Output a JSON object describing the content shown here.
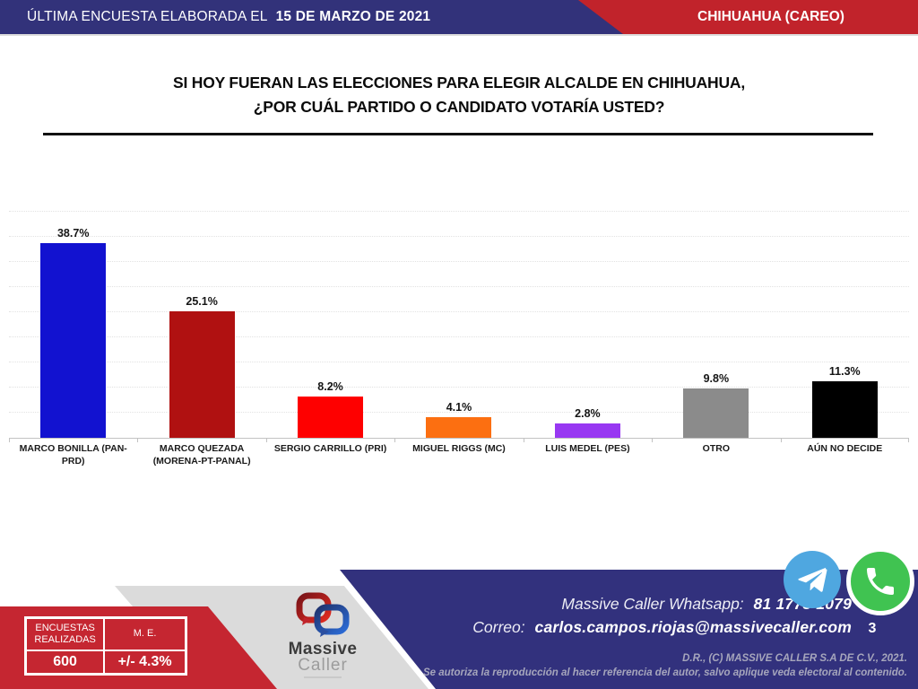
{
  "header": {
    "left_label": "ÚLTIMA ENCUESTA ELABORADA EL",
    "date": "15 DE MARZO DE 2021",
    "region_label": "CHIHUAHUA (CAREO)"
  },
  "question": {
    "line1": "SI HOY FUERAN LAS ELECCIONES PARA ELEGIR ALCALDE EN CHIHUAHUA,",
    "line2": "¿POR CUÁL PARTIDO O CANDIDATO VOTARÍA USTED?"
  },
  "chart_data": {
    "type": "bar",
    "title": "SI HOY FUERAN LAS ELECCIONES PARA ELEGIR ALCALDE EN CHIHUAHUA, ¿POR CUÁL PARTIDO O CANDIDATO VOTARÍA USTED?",
    "categories": [
      "MARCO BONILLA (PAN-PRD)",
      "MARCO QUEZADA (MORENA-PT-PANAL)",
      "SERGIO CARRILLO (PRI)",
      "MIGUEL RIGGS (MC)",
      "LUIS MEDEL (PES)",
      "OTRO",
      "AÚN NO DECIDE"
    ],
    "values": [
      38.7,
      25.1,
      8.2,
      4.1,
      2.8,
      9.8,
      11.3
    ],
    "value_labels": [
      "38.7%",
      "25.1%",
      "8.2%",
      "4.1%",
      "2.8%",
      "9.8%",
      "11.3%"
    ],
    "bar_colors": [
      "#1212D0",
      "#B01111",
      "#FE0000",
      "#FC6F11",
      "#9838F2",
      "#8B8B8B",
      "#000000"
    ],
    "xlabel": "",
    "ylabel": "",
    "ylim": [
      0,
      45
    ],
    "gridline_step": 5,
    "grid": true,
    "legend": false
  },
  "footer": {
    "table": {
      "col1_header": "ENCUESTAS REALIZADAS",
      "col2_header": "M. E.",
      "col1_value": "600",
      "col2_value": "+/- 4.3%"
    },
    "logo": {
      "word1": "Massive",
      "word2": "Caller"
    },
    "contact": {
      "whatsapp_label": "Massive Caller Whatsapp:",
      "whatsapp_number": "81 1778 1079",
      "email_label": "Correo:",
      "email": "carlos.campos.riojas@massivecaller.com"
    },
    "page_number": "3",
    "copyright_line1": "D.R., (C) MASSIVE CALLER S.A DE C.V., 2021.",
    "copyright_line2": "Se autoriza la reproducción al hacer referencia del autor, salvo aplique veda electoral al contenido."
  },
  "colors": {
    "brand_blue": "#32327A",
    "brand_red": "#C1232B",
    "footer_red": "#C52631",
    "footer_gray": "#DBDBDB"
  }
}
